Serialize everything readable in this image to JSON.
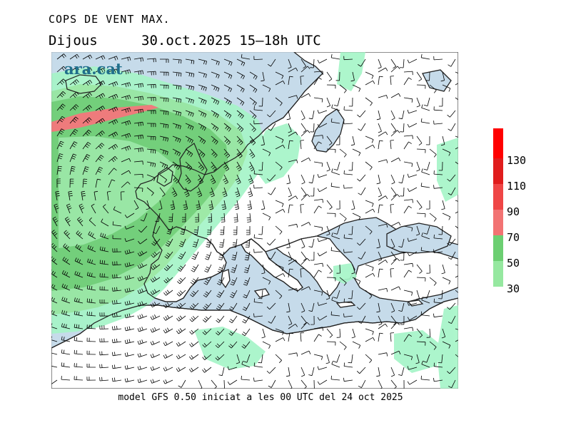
{
  "header": {
    "title": "COPS DE VENT MAX.",
    "day": "Dijous",
    "datetime": "30.oct.2025 15—18h UTC"
  },
  "logo": {
    "text": "ara.cat",
    "color": "#1f6f8b"
  },
  "footer": {
    "model_text": "model GFS 0.50 iniciat a les 00 UTC del 24 oct 2025"
  },
  "legend": {
    "levels": [
      {
        "label": "30",
        "color": "#a6f5c8"
      },
      {
        "label": "50",
        "color": "#96e8a0"
      },
      {
        "label": "70",
        "color": "#6ccf72"
      },
      {
        "label": "90",
        "color": "#f27373"
      },
      {
        "label": "110",
        "color": "#ef4646"
      },
      {
        "label": "130",
        "color": "#e01d1d"
      }
    ],
    "top_color": "#ff0000"
  },
  "colors": {
    "sea": "#c6dbea",
    "land": "#ffffff",
    "coast": "#222222",
    "barb": "#000000"
  }
}
